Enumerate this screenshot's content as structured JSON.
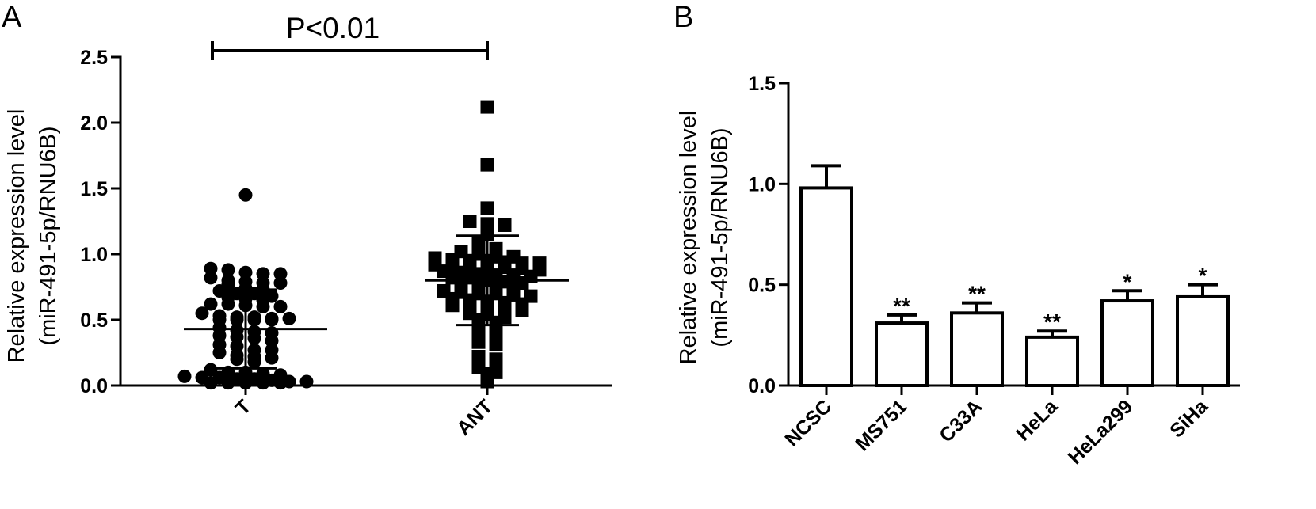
{
  "chart_data": [
    {
      "panel": "A",
      "type": "scatter",
      "ylabel_line1": "Relative expression level",
      "ylabel_line2": "(miR-491-5p/RNU6B)",
      "ylim": [
        0,
        2.5
      ],
      "yticks": [
        "0.0",
        "0.5",
        "1.0",
        "1.5",
        "2.0",
        "2.5"
      ],
      "categories": [
        "T",
        "ANT"
      ],
      "significance": "P<0.01",
      "series": [
        {
          "category": "T",
          "marker": "circle",
          "mean": 0.43,
          "sd": 0.3,
          "values": [
            1.45,
            0.89,
            0.88,
            0.86,
            0.85,
            0.85,
            0.82,
            0.8,
            0.79,
            0.78,
            0.78,
            0.77,
            0.74,
            0.73,
            0.72,
            0.7,
            0.7,
            0.68,
            0.67,
            0.66,
            0.65,
            0.62,
            0.62,
            0.61,
            0.6,
            0.6,
            0.55,
            0.53,
            0.52,
            0.52,
            0.51,
            0.51,
            0.5,
            0.5,
            0.5,
            0.5,
            0.44,
            0.42,
            0.41,
            0.4,
            0.38,
            0.37,
            0.36,
            0.34,
            0.31,
            0.3,
            0.27,
            0.27,
            0.25,
            0.23,
            0.22,
            0.21,
            0.2,
            0.18,
            0.12,
            0.1,
            0.1,
            0.09,
            0.08,
            0.07,
            0.06,
            0.06,
            0.05,
            0.05,
            0.04,
            0.03,
            0.03,
            0.02,
            0.02,
            0.02,
            0.02,
            0.02
          ]
        },
        {
          "category": "ANT",
          "marker": "square",
          "mean": 0.8,
          "sd": 0.34,
          "values": [
            2.12,
            1.68,
            1.35,
            1.25,
            1.23,
            1.22,
            1.15,
            1.08,
            1.04,
            1.02,
            1.0,
            0.98,
            0.98,
            0.97,
            0.96,
            0.95,
            0.95,
            0.94,
            0.93,
            0.93,
            0.92,
            0.92,
            0.91,
            0.9,
            0.9,
            0.89,
            0.88,
            0.87,
            0.86,
            0.85,
            0.84,
            0.84,
            0.83,
            0.82,
            0.82,
            0.8,
            0.79,
            0.78,
            0.77,
            0.76,
            0.75,
            0.74,
            0.72,
            0.71,
            0.7,
            0.7,
            0.69,
            0.68,
            0.66,
            0.65,
            0.64,
            0.63,
            0.62,
            0.61,
            0.6,
            0.59,
            0.58,
            0.57,
            0.55,
            0.54,
            0.52,
            0.5,
            0.48,
            0.45,
            0.43,
            0.4,
            0.37,
            0.33,
            0.31,
            0.22,
            0.2,
            0.14,
            0.1,
            0.09,
            0.03
          ]
        }
      ]
    },
    {
      "panel": "B",
      "type": "bar",
      "ylabel_line1": "Relative expression level",
      "ylabel_line2": "(miR-491-5p/RNU6B)",
      "ylim": [
        0,
        1.5
      ],
      "yticks": [
        "0.0",
        "0.5",
        "1.0",
        "1.5"
      ],
      "categories": [
        "NCSC",
        "MS751",
        "C33A",
        "HeLa",
        "HeLa299",
        "SiHa"
      ],
      "values": [
        0.98,
        0.31,
        0.36,
        0.24,
        0.42,
        0.44
      ],
      "errors": [
        0.11,
        0.04,
        0.05,
        0.03,
        0.05,
        0.06
      ],
      "significance": [
        "",
        "**",
        "**",
        "**",
        "*",
        "*"
      ]
    }
  ]
}
